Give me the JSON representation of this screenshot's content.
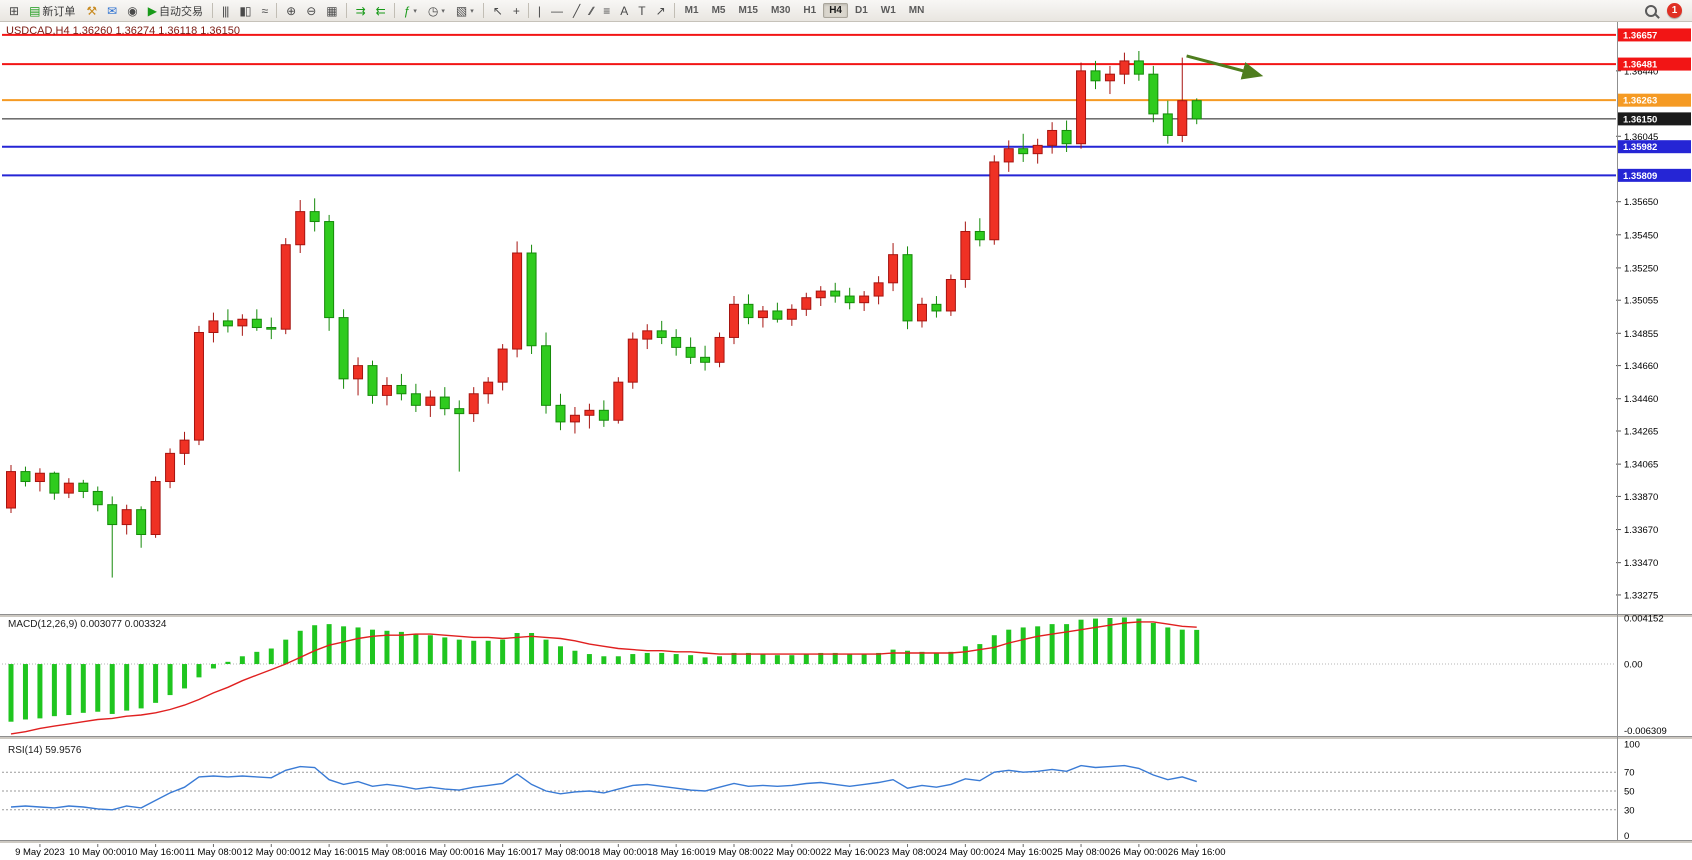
{
  "window": {
    "symbol_period": "USDCAD,H4",
    "ohlc": {
      "open": "1.36260",
      "high": "1.36274",
      "low": "1.36118",
      "close": "1.36150"
    },
    "title": "USDCAD,H4  1.36260 1.36274 1.36118 1.36150"
  },
  "toolbar": {
    "new_order_label": "新订单",
    "autotrade_label": "自动交易",
    "notification_count": "1",
    "icons": {
      "new_chart": {
        "glyph": "⊞"
      },
      "new_order": {
        "glyph": "▤"
      },
      "tester": {
        "glyph": "⚒"
      },
      "mail": {
        "glyph": "✉"
      },
      "community": {
        "glyph": "◉"
      },
      "autotrade": {
        "glyph": "▶"
      },
      "bar_chart": {
        "glyph": "|||"
      },
      "candle_chart": {
        "glyph": "▮▯"
      },
      "line_chart": {
        "glyph": "≈"
      },
      "zoom_in": {
        "glyph": "⊕"
      },
      "zoom_out": {
        "glyph": "⊖"
      },
      "tile_windows": {
        "glyph": "▦"
      },
      "auto_scroll": {
        "glyph": "⇉"
      },
      "chart_shift": {
        "glyph": "⇇"
      },
      "indicators": {
        "glyph": "ƒ"
      },
      "periods": {
        "glyph": "◷"
      },
      "templates": {
        "glyph": "▧"
      },
      "caret": {
        "glyph": "▾"
      },
      "cursor": {
        "glyph": "↖"
      },
      "crosshair": {
        "glyph": "+"
      },
      "vline": {
        "glyph": "|"
      },
      "hline": {
        "glyph": "—"
      },
      "trendline": {
        "glyph": "╱"
      },
      "channel": {
        "glyph": "∕∕"
      },
      "fibonacci": {
        "glyph": "≡"
      },
      "text": {
        "glyph": "A"
      },
      "label": {
        "glyph": "T"
      },
      "arrows": {
        "glyph": "↗"
      }
    }
  },
  "timeframes": {
    "options": [
      "M1",
      "M5",
      "M15",
      "M30",
      "H1",
      "H4",
      "D1",
      "W1",
      "MN"
    ],
    "active": "H4"
  },
  "colors": {
    "background": "#ffffff",
    "up_fill": "#ef3124",
    "up_border": "#a61410",
    "down_fill": "#2fcb1e",
    "down_border": "#158a0a",
    "macd_hist": "#1fc51f",
    "macd_signal": "#e02020",
    "rsi_line": "#3a7bd5",
    "axis_text": "#000000",
    "arrow_annotation": "#4e7d1e"
  },
  "chart_data": {
    "type": "candlestick",
    "symbol": "USDCAD",
    "period": "H4",
    "title": "USDCAD,H4  1.36260 1.36274 1.36118 1.36150",
    "current_price": "1.36150",
    "price_range": {
      "top": 1.36723,
      "bottom": 1.33172
    },
    "price_axis_ticks": [
      "1.36440",
      "1.36045",
      "1.35650",
      "1.35450",
      "1.35250",
      "1.35055",
      "1.34855",
      "1.34660",
      "1.34460",
      "1.34265",
      "1.34065",
      "1.33870",
      "1.33670",
      "1.33470",
      "1.33275"
    ],
    "time_labels": [
      "9 May 2023",
      "10 May 00:00",
      "10 May 16:00",
      "11 May 08:00",
      "12 May 00:00",
      "12 May 16:00",
      "15 May 08:00",
      "16 May 00:00",
      "16 May 16:00",
      "17 May 08:00",
      "18 May 00:00",
      "18 May 16:00",
      "19 May 08:00",
      "22 May 00:00",
      "22 May 16:00",
      "23 May 08:00",
      "24 May 00:00",
      "24 May 16:00",
      "25 May 08:00",
      "26 May 00:00",
      "26 May 16:00"
    ],
    "first_label_candle_index": 2,
    "label_every_n_candles": 4,
    "hlines": [
      {
        "price": 1.36657,
        "color": "#f21515",
        "width": 2,
        "label": "1.36657",
        "role": "resistance"
      },
      {
        "price": 1.36481,
        "color": "#f21515",
        "width": 2,
        "label": "1.36481",
        "role": "resistance"
      },
      {
        "price": 1.36263,
        "color": "#f59a23",
        "width": 2,
        "label": "1.36263",
        "role": "pivot"
      },
      {
        "price": 1.3615,
        "color": "#1a1a1a",
        "width": 1,
        "label": "1.36150",
        "role": "current-price"
      },
      {
        "price": 1.35982,
        "color": "#2525d5",
        "width": 2,
        "label": "1.35982",
        "role": "support"
      },
      {
        "price": 1.35809,
        "color": "#2525d5",
        "width": 2,
        "label": "1.35809",
        "role": "support"
      }
    ],
    "candles": [
      [
        1.338,
        1.3406,
        1.3377,
        1.3402
      ],
      [
        1.3402,
        1.3405,
        1.3393,
        1.3396
      ],
      [
        1.3396,
        1.3404,
        1.339,
        1.3401
      ],
      [
        1.3401,
        1.3402,
        1.3385,
        1.3389
      ],
      [
        1.3389,
        1.3398,
        1.3386,
        1.3395
      ],
      [
        1.3395,
        1.3397,
        1.3386,
        1.339
      ],
      [
        1.339,
        1.3393,
        1.3378,
        1.3382
      ],
      [
        1.3382,
        1.3387,
        1.3338,
        1.337
      ],
      [
        1.337,
        1.3382,
        1.3364,
        1.3379
      ],
      [
        1.3379,
        1.3381,
        1.3356,
        1.3364
      ],
      [
        1.3364,
        1.3399,
        1.3362,
        1.3396
      ],
      [
        1.3396,
        1.3416,
        1.3392,
        1.3413
      ],
      [
        1.3413,
        1.3426,
        1.3406,
        1.3421
      ],
      [
        1.3421,
        1.349,
        1.3418,
        1.3486
      ],
      [
        1.3486,
        1.3498,
        1.348,
        1.3493
      ],
      [
        1.3493,
        1.35,
        1.3486,
        1.349
      ],
      [
        1.349,
        1.3497,
        1.3484,
        1.3494
      ],
      [
        1.3494,
        1.35,
        1.3487,
        1.3489
      ],
      [
        1.3489,
        1.3495,
        1.3482,
        1.3488
      ],
      [
        1.3488,
        1.3543,
        1.3485,
        1.3539
      ],
      [
        1.3539,
        1.3566,
        1.3534,
        1.3559
      ],
      [
        1.3559,
        1.3567,
        1.3547,
        1.3553
      ],
      [
        1.3553,
        1.3557,
        1.3487,
        1.3495
      ],
      [
        1.3495,
        1.35,
        1.3452,
        1.3458
      ],
      [
        1.3458,
        1.3471,
        1.3448,
        1.3466
      ],
      [
        1.3466,
        1.3469,
        1.3443,
        1.3448
      ],
      [
        1.3448,
        1.3459,
        1.3442,
        1.3454
      ],
      [
        1.3454,
        1.3461,
        1.3445,
        1.3449
      ],
      [
        1.3449,
        1.3455,
        1.3438,
        1.3442
      ],
      [
        1.3442,
        1.3451,
        1.3435,
        1.3447
      ],
      [
        1.3447,
        1.3453,
        1.3436,
        1.344
      ],
      [
        1.344,
        1.3445,
        1.3402,
        1.3437
      ],
      [
        1.3437,
        1.3453,
        1.3432,
        1.3449
      ],
      [
        1.3449,
        1.3459,
        1.3443,
        1.3456
      ],
      [
        1.3456,
        1.3479,
        1.3451,
        1.3476
      ],
      [
        1.3476,
        1.3541,
        1.3471,
        1.3534
      ],
      [
        1.3534,
        1.3539,
        1.3473,
        1.3478
      ],
      [
        1.3478,
        1.3486,
        1.3437,
        1.3442
      ],
      [
        1.3442,
        1.3449,
        1.3427,
        1.3432
      ],
      [
        1.3432,
        1.3441,
        1.3425,
        1.3436
      ],
      [
        1.3436,
        1.3443,
        1.3428,
        1.3439
      ],
      [
        1.3439,
        1.3445,
        1.3429,
        1.3433
      ],
      [
        1.3433,
        1.3459,
        1.3431,
        1.3456
      ],
      [
        1.3456,
        1.3486,
        1.3452,
        1.3482
      ],
      [
        1.3482,
        1.3491,
        1.3476,
        1.3487
      ],
      [
        1.3487,
        1.3493,
        1.3479,
        1.3483
      ],
      [
        1.3483,
        1.3488,
        1.3472,
        1.3477
      ],
      [
        1.3477,
        1.3483,
        1.3467,
        1.3471
      ],
      [
        1.3471,
        1.3478,
        1.3463,
        1.3468
      ],
      [
        1.3468,
        1.3486,
        1.3465,
        1.3483
      ],
      [
        1.3483,
        1.3508,
        1.3479,
        1.3503
      ],
      [
        1.3503,
        1.3509,
        1.3491,
        1.3495
      ],
      [
        1.3495,
        1.3502,
        1.3489,
        1.3499
      ],
      [
        1.3499,
        1.3504,
        1.3492,
        1.3494
      ],
      [
        1.3494,
        1.3503,
        1.349,
        1.35
      ],
      [
        1.35,
        1.351,
        1.3496,
        1.3507
      ],
      [
        1.3507,
        1.3514,
        1.3502,
        1.3511
      ],
      [
        1.3511,
        1.3516,
        1.3504,
        1.3508
      ],
      [
        1.3508,
        1.3513,
        1.35,
        1.3504
      ],
      [
        1.3504,
        1.3511,
        1.3499,
        1.3508
      ],
      [
        1.3508,
        1.352,
        1.3503,
        1.3516
      ],
      [
        1.3516,
        1.354,
        1.3511,
        1.3533
      ],
      [
        1.3533,
        1.3538,
        1.3488,
        1.3493
      ],
      [
        1.3493,
        1.3507,
        1.3489,
        1.3503
      ],
      [
        1.3503,
        1.3508,
        1.3495,
        1.3499
      ],
      [
        1.3499,
        1.3521,
        1.3496,
        1.3518
      ],
      [
        1.3518,
        1.3553,
        1.3513,
        1.3547
      ],
      [
        1.3547,
        1.3555,
        1.3538,
        1.3542
      ],
      [
        1.3542,
        1.3593,
        1.3539,
        1.3589
      ],
      [
        1.3589,
        1.3602,
        1.3583,
        1.3597
      ],
      [
        1.3597,
        1.3606,
        1.3589,
        1.3594
      ],
      [
        1.3594,
        1.3603,
        1.3588,
        1.3599
      ],
      [
        1.3599,
        1.3613,
        1.3594,
        1.3608
      ],
      [
        1.3608,
        1.3614,
        1.3595,
        1.36
      ],
      [
        1.36,
        1.3649,
        1.3597,
        1.3644
      ],
      [
        1.3644,
        1.365,
        1.3633,
        1.3638
      ],
      [
        1.3638,
        1.3647,
        1.363,
        1.3642
      ],
      [
        1.3642,
        1.3655,
        1.3636,
        1.365
      ],
      [
        1.365,
        1.3656,
        1.3638,
        1.3642
      ],
      [
        1.3642,
        1.3647,
        1.3613,
        1.3618
      ],
      [
        1.3618,
        1.3626,
        1.36,
        1.3605
      ],
      [
        1.3605,
        1.3652,
        1.3601,
        1.3626
      ],
      [
        1.3626,
        1.36274,
        1.36118,
        1.3615
      ]
    ],
    "macd": {
      "label": "MACD(12,26,9)",
      "values_text": "0.003077 0.003324",
      "label_full": "MACD(12,26,9) 0.003077 0.003324",
      "max": 0.004152,
      "min": -0.006309,
      "axis_labels": [
        "0.004152",
        "0.00",
        "-0.006309"
      ],
      "histogram": [
        -0.0052,
        -0.005,
        -0.0049,
        -0.0047,
        -0.0046,
        -0.0044,
        -0.0043,
        -0.0045,
        -0.0042,
        -0.004,
        -0.0035,
        -0.0028,
        -0.0022,
        -0.0012,
        -0.0004,
        0.0002,
        0.0007,
        0.0011,
        0.0014,
        0.0022,
        0.003,
        0.0035,
        0.0036,
        0.0034,
        0.0033,
        0.0031,
        0.003,
        0.0029,
        0.0027,
        0.0026,
        0.0024,
        0.0022,
        0.0021,
        0.0021,
        0.0022,
        0.0028,
        0.0028,
        0.0022,
        0.0016,
        0.0012,
        0.0009,
        0.0007,
        0.0007,
        0.0009,
        0.001,
        0.001,
        0.0009,
        0.0008,
        0.0006,
        0.0007,
        0.001,
        0.001,
        0.0009,
        0.0008,
        0.0008,
        0.0009,
        0.001,
        0.001,
        0.0009,
        0.0009,
        0.001,
        0.0013,
        0.0012,
        0.0011,
        0.001,
        0.0011,
        0.0016,
        0.0018,
        0.0026,
        0.0031,
        0.0033,
        0.0034,
        0.0036,
        0.0036,
        0.004,
        0.0041,
        0.00415,
        0.0042,
        0.0041,
        0.0037,
        0.0033,
        0.0031,
        0.00308
      ],
      "signal": [
        -0.0063,
        -0.0061,
        -0.0058,
        -0.0056,
        -0.0054,
        -0.0052,
        -0.005,
        -0.0049,
        -0.0047,
        -0.0046,
        -0.0044,
        -0.0041,
        -0.0037,
        -0.0032,
        -0.0026,
        -0.0021,
        -0.0015,
        -0.001,
        -0.0005,
        0.0,
        0.0006,
        0.0012,
        0.0017,
        0.002,
        0.0023,
        0.0025,
        0.0026,
        0.0026,
        0.0027,
        0.0027,
        0.0026,
        0.0025,
        0.0024,
        0.0024,
        0.0023,
        0.0024,
        0.0025,
        0.0024,
        0.0023,
        0.0021,
        0.0018,
        0.0016,
        0.0014,
        0.0013,
        0.0012,
        0.0012,
        0.0011,
        0.0011,
        0.001,
        0.0009,
        0.0009,
        0.0009,
        0.0009,
        0.0009,
        0.0009,
        0.0009,
        0.0009,
        0.0009,
        0.0009,
        0.0009,
        0.0009,
        0.001,
        0.001,
        0.001,
        0.001,
        0.001,
        0.0011,
        0.0013,
        0.0015,
        0.0019,
        0.0022,
        0.0025,
        0.0027,
        0.0029,
        0.0031,
        0.0033,
        0.0035,
        0.0037,
        0.0038,
        0.0038,
        0.0036,
        0.0034,
        0.00332
      ]
    },
    "rsi": {
      "label": "RSI(14)",
      "value_text": "59.9576",
      "label_full": "RSI(14) 59.9576",
      "range": [
        0,
        100
      ],
      "levels": [
        30,
        50,
        70
      ],
      "axis_labels": [
        "100",
        "70",
        "50",
        "30",
        "0"
      ],
      "values": [
        33,
        34,
        33,
        32,
        34,
        33,
        31,
        30,
        34,
        32,
        40,
        48,
        54,
        65,
        66,
        65,
        66,
        65,
        64,
        72,
        76,
        75,
        62,
        57,
        60,
        55,
        57,
        55,
        52,
        54,
        52,
        51,
        54,
        56,
        58,
        68,
        57,
        50,
        47,
        49,
        50,
        48,
        52,
        56,
        57,
        55,
        53,
        51,
        50,
        54,
        58,
        55,
        56,
        55,
        56,
        58,
        59,
        57,
        55,
        57,
        59,
        62,
        53,
        56,
        54,
        57,
        63,
        61,
        70,
        72,
        70,
        71,
        73,
        71,
        77,
        75,
        76,
        77,
        74,
        67,
        62,
        65,
        59.96
      ]
    },
    "annotations": [
      {
        "type": "trend-arrow",
        "from": {
          "time_index": 81.3,
          "price": 1.3653
        },
        "to": {
          "time_index": 86.3,
          "price": 1.36415
        },
        "color": "#4e7d1e"
      }
    ]
  }
}
